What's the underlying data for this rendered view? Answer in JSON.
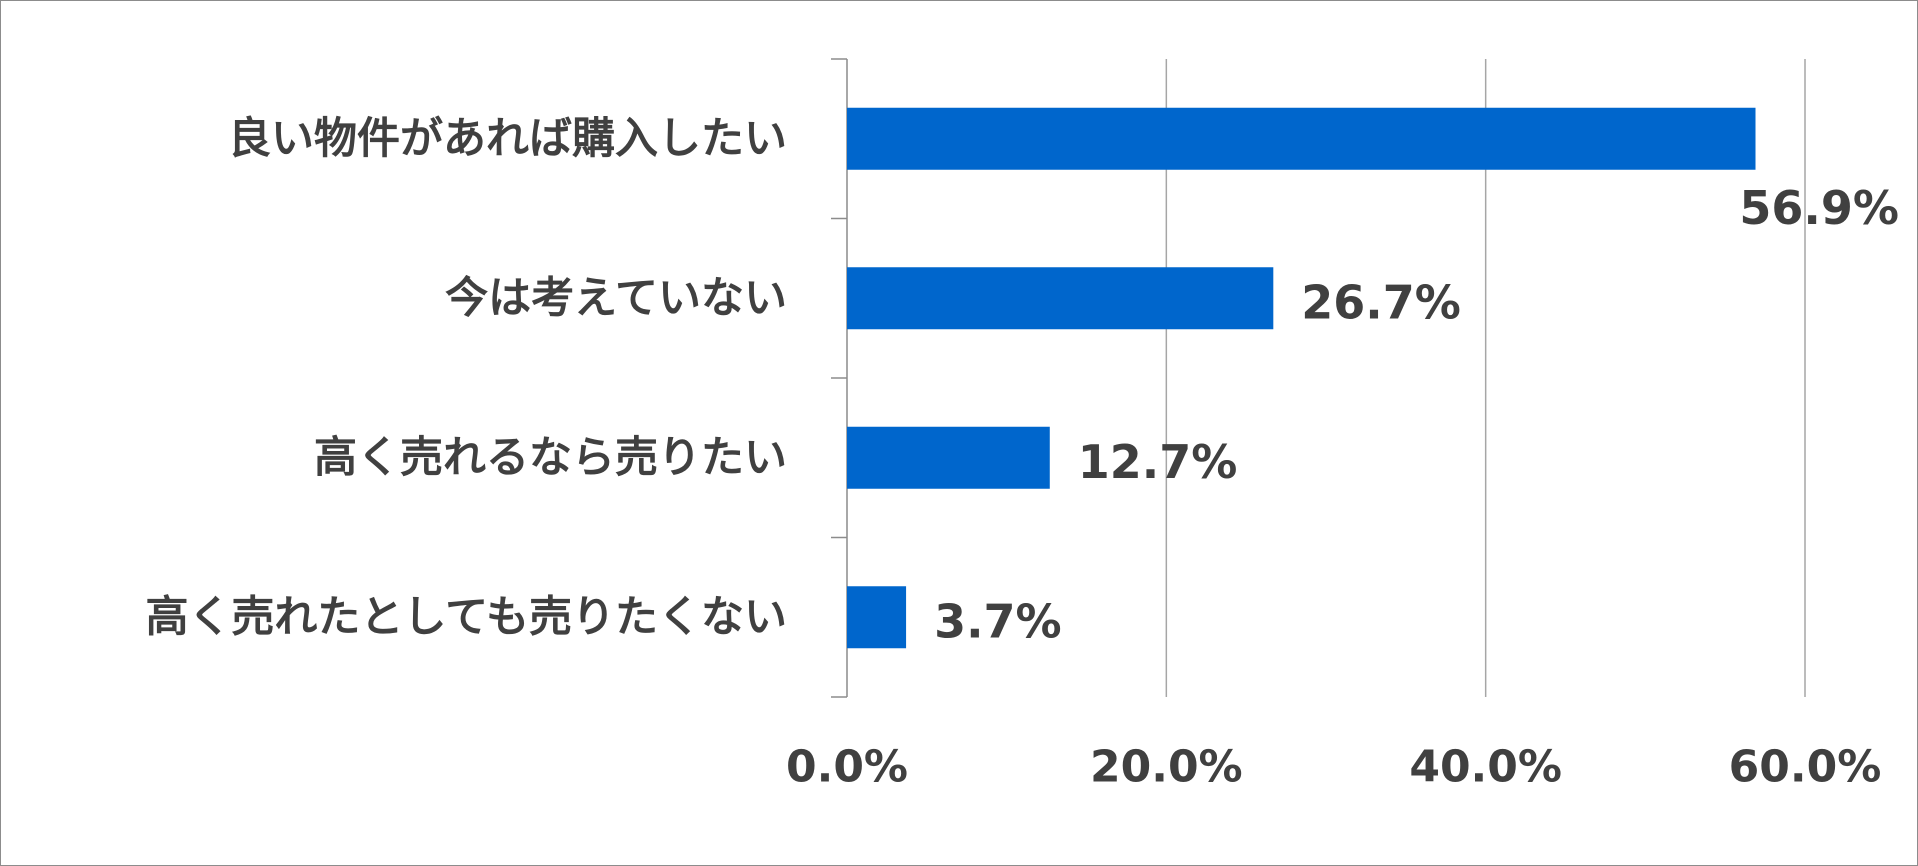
{
  "chart_data": {
    "type": "bar",
    "orientation": "horizontal",
    "title": "",
    "xlabel": "",
    "ylabel": "",
    "categories": [
      "良い物件があれば購入したい",
      "今は考えていない",
      "高く売れるなら売りたい",
      "高く売れたとしても売りたくない"
    ],
    "values": [
      56.9,
      26.7,
      12.7,
      3.7
    ],
    "value_labels": [
      "56.9%",
      "26.7%",
      "12.7%",
      "3.7%"
    ],
    "xlim": [
      0,
      60
    ],
    "x_ticks": [
      0,
      20,
      40,
      60
    ],
    "x_tick_labels": [
      "0.0%",
      "20.0%",
      "40.0%",
      "60.0%"
    ],
    "grid": true,
    "legend": "none",
    "colors": {
      "bar": "#0066CC",
      "grid": "#a6a6a6",
      "axis": "#8c8c8c",
      "text": "#404040"
    }
  }
}
